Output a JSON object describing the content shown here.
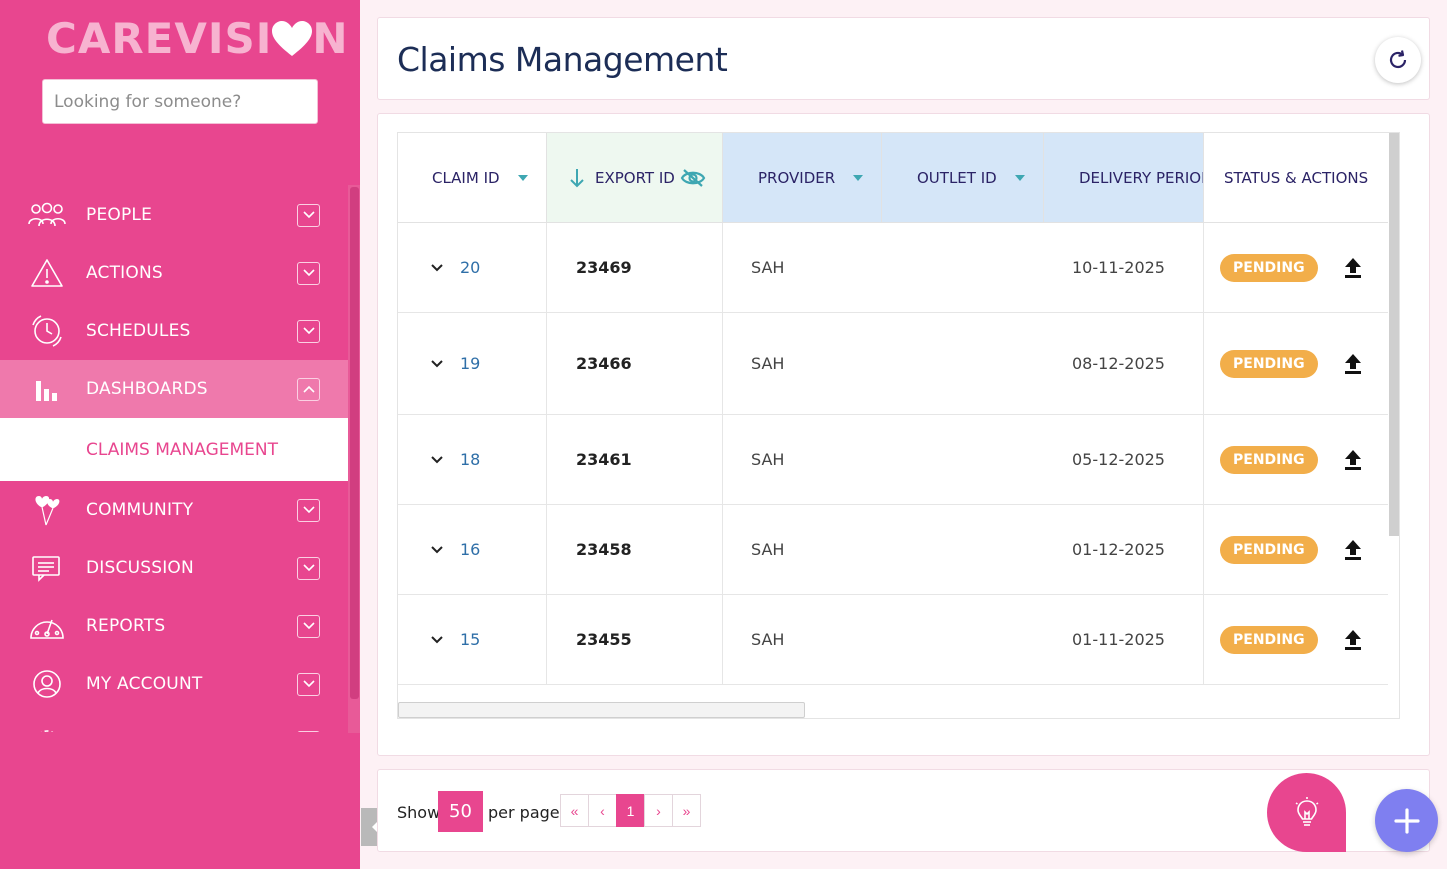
{
  "brand": {
    "logo_left": "CAREVISI",
    "logo_right": "N"
  },
  "search": {
    "placeholder": "Looking for someone?"
  },
  "nav": {
    "items": [
      {
        "label": "PEOPLE",
        "icon": "people-icon"
      },
      {
        "label": "ACTIONS",
        "icon": "warning-icon"
      },
      {
        "label": "SCHEDULES",
        "icon": "clock-icon"
      },
      {
        "label": "DASHBOARDS",
        "icon": "bar-chart-icon"
      },
      {
        "label": "COMMUNITY",
        "icon": "balloons-icon"
      },
      {
        "label": "DISCUSSION",
        "icon": "chat-icon"
      },
      {
        "label": "REPORTS",
        "icon": "speedometer-icon"
      },
      {
        "label": "MY ACCOUNT",
        "icon": "user-icon"
      }
    ],
    "sub_item": "CLAIMS MANAGEMENT"
  },
  "header": {
    "title": "Claims Management"
  },
  "table": {
    "columns": [
      "CLAIM ID",
      "EXPORT ID",
      "PROVIDER",
      "OUTLET ID",
      "DELIVERY PERIOD",
      "STATUS & ACTIONS"
    ],
    "rows": [
      {
        "claim_id": "20",
        "export_id": "23469",
        "provider": "SAH",
        "delivery": "10-11-2025",
        "status": "PENDING"
      },
      {
        "claim_id": "19",
        "export_id": "23466",
        "provider": "SAH",
        "delivery": "08-12-2025",
        "status": "PENDING"
      },
      {
        "claim_id": "18",
        "export_id": "23461",
        "provider": "SAH",
        "delivery": "05-12-2025",
        "status": "PENDING"
      },
      {
        "claim_id": "16",
        "export_id": "23458",
        "provider": "SAH",
        "delivery": "01-12-2025",
        "status": "PENDING"
      },
      {
        "claim_id": "15",
        "export_id": "23455",
        "provider": "SAH",
        "delivery": "01-11-2025",
        "status": "PENDING"
      }
    ]
  },
  "pagination": {
    "show_label": "Show",
    "per_page_value": "50",
    "per_page_label": "per page",
    "first": "«",
    "prev": "‹",
    "current": "1",
    "next": "›",
    "last": "»"
  },
  "colors": {
    "brand_pink": "#e8468f",
    "badge_orange": "#f2ae4a",
    "title_navy": "#1c2d56",
    "fab_purple": "#7f7ff0"
  }
}
